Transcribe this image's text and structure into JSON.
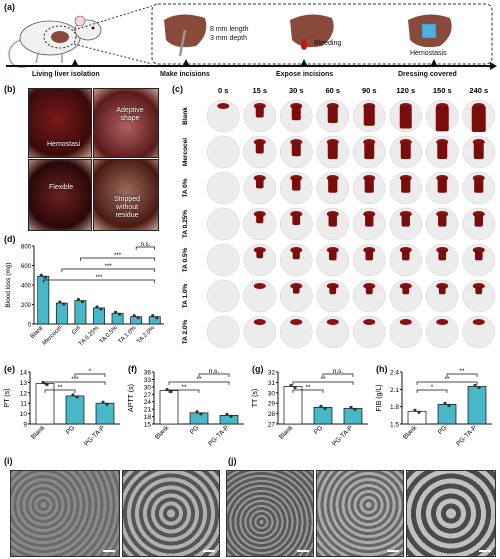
{
  "panel_labels": {
    "a": "(a)",
    "b": "(b)",
    "c": "(c)",
    "d": "(d)",
    "e": "(e)",
    "f": "(f)",
    "g": "(g)",
    "h": "(h)",
    "i": "(i)",
    "j": "(j)"
  },
  "panel_a": {
    "steps": [
      "Living liver isolation",
      "Make incisions",
      "Expose incisions",
      "Dressing covered"
    ],
    "incision_length": "8 mm length",
    "incision_depth": "3 mm depth",
    "bleeding": "Bleeding",
    "hemostasis": "Hemostasis"
  },
  "panel_b": {
    "captions": [
      "Hemostasi",
      "Adeptive shape",
      "Flexible",
      "Stripped without residue"
    ]
  },
  "panel_c": {
    "times": [
      "0 s",
      "15 s",
      "30 s",
      "60 s",
      "90 s",
      "120 s",
      "150 s",
      "240 s"
    ],
    "groups": [
      "Blank",
      "Mercocel",
      "TA 0%",
      "TA 0.25%",
      "TA 0.5%",
      "TA 1.0%",
      "TA 2.0%"
    ]
  },
  "chart_data": [
    {
      "type": "bar",
      "panel": "d",
      "categories": [
        "Blank",
        "Mercocel",
        "Gel",
        "TA 0.25%",
        "TA 0.5%",
        "TA 1.0%",
        "TA 2.0%"
      ],
      "values": [
        490,
        215,
        240,
        165,
        110,
        75,
        75
      ],
      "ylabel": "Blood loss (mg)",
      "ylim": [
        0,
        800
      ],
      "yticks": [
        "0",
        "200",
        "400",
        "600",
        "800"
      ],
      "significance": [
        {
          "from": "Blank",
          "to": "TA 2.0%",
          "label": "***"
        },
        {
          "from": "Mercocel",
          "to": "TA 2.0%",
          "label": "***"
        },
        {
          "from": "Gel",
          "to": "TA 2.0%",
          "label": "***"
        },
        {
          "from": "TA 1.0%",
          "to": "TA 2.0%",
          "label": "n.s."
        }
      ]
    },
    {
      "type": "bar",
      "panel": "e",
      "categories": [
        "Blank",
        "PG",
        "PG-TA-P"
      ],
      "values": [
        12.9,
        11.7,
        11.0
      ],
      "ylabel": "PT (s)",
      "ylim": [
        9,
        14
      ],
      "yticks": [
        "9",
        "10",
        "11",
        "12",
        "13",
        "14"
      ],
      "significance": [
        {
          "from": "Blank",
          "to": "PG",
          "label": "**"
        },
        {
          "from": "Blank",
          "to": "PG-TA-P",
          "label": "***"
        },
        {
          "from": "PG",
          "to": "PG-TA-P",
          "label": "*"
        }
      ]
    },
    {
      "type": "bar",
      "panel": "f",
      "categories": [
        "Blank",
        "PG",
        "PG-TA-P"
      ],
      "values": [
        28.5,
        19.5,
        18.5
      ],
      "ylabel": "APTT (s)",
      "ylim": [
        15,
        36
      ],
      "yticks": [
        "15",
        "18",
        "21",
        "24",
        "27",
        "30",
        "33",
        "36"
      ],
      "significance": [
        {
          "from": "Blank",
          "to": "PG",
          "label": "**"
        },
        {
          "from": "Blank",
          "to": "PG-TA-P",
          "label": "**"
        },
        {
          "from": "PG",
          "to": "PG-TA-P",
          "label": "n.s."
        }
      ]
    },
    {
      "type": "bar",
      "panel": "g",
      "categories": [
        "Blank",
        "PG",
        "PG-TA-P"
      ],
      "values": [
        30.6,
        28.6,
        28.5
      ],
      "ylabel": "TT (s)",
      "ylim": [
        27,
        32
      ],
      "yticks": [
        "27",
        "28",
        "29",
        "30",
        "31",
        "32"
      ],
      "significance": [
        {
          "from": "Blank",
          "to": "PG",
          "label": "**"
        },
        {
          "from": "Blank",
          "to": "PG-TA-P",
          "label": "**"
        },
        {
          "from": "PG",
          "to": "PG-TA-P",
          "label": "n.s."
        }
      ]
    },
    {
      "type": "bar",
      "panel": "h",
      "categories": [
        "Blank",
        "PG",
        "PG-TA-P"
      ],
      "values": [
        1.72,
        1.84,
        2.15
      ],
      "ylabel": "FIB (g/L)",
      "ylim": [
        1.5,
        2.4
      ],
      "yticks": [
        "1.5",
        "1.8",
        "2.1",
        "2.4"
      ],
      "significance": [
        {
          "from": "Blank",
          "to": "PG",
          "label": "*"
        },
        {
          "from": "Blank",
          "to": "PG-TA-P",
          "label": "**"
        },
        {
          "from": "PG",
          "to": "PG-TA-P",
          "label": "**"
        }
      ]
    }
  ],
  "colors": {
    "bar": "#48b8c8",
    "blood": "#8b1010",
    "liver": "#8a4a3a",
    "dressing": "#4ab0e0"
  }
}
